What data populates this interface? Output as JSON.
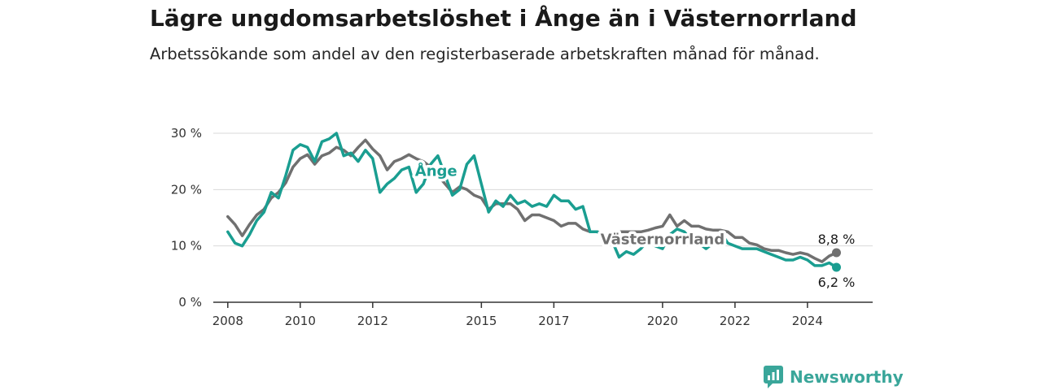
{
  "header": {
    "title": "Lägre ungdomsarbetslöshet i Ånge än i Västernorrland",
    "subtitle": "Arbetssökande som andel av den registerbaserade arbetskraften månad för månad."
  },
  "brand": {
    "name": "Newsworthy",
    "color": "#3aa69a",
    "icon": "chart-bubble-icon"
  },
  "chart_data": {
    "type": "line",
    "title": "Lägre ungdomsarbetslöshet i Ånge än i Västernorrland",
    "subtitle": "Arbetssökande som andel av den registerbaserade arbetskraften månad för månad.",
    "xlabel": "",
    "ylabel": "",
    "xlim": [
      2007.6,
      2025.8
    ],
    "ylim": [
      0,
      30
    ],
    "grid": true,
    "legend": "none",
    "x_ticks": [
      {
        "value": 2008,
        "label": "2008"
      },
      {
        "value": 2010,
        "label": "2010"
      },
      {
        "value": 2012,
        "label": "2012"
      },
      {
        "value": 2015,
        "label": "2015"
      },
      {
        "value": 2017,
        "label": "2017"
      },
      {
        "value": 2020,
        "label": "2020"
      },
      {
        "value": 2022,
        "label": "2022"
      },
      {
        "value": 2024,
        "label": "2024"
      }
    ],
    "y_ticks": [
      {
        "value": 0,
        "label": "0 %"
      },
      {
        "value": 10,
        "label": "10 %"
      },
      {
        "value": 20,
        "label": "20 %"
      },
      {
        "value": 30,
        "label": "30 %"
      }
    ],
    "series": [
      {
        "name": "Västernorrland",
        "color": "#707070",
        "end_label": "8,8 %",
        "x": [
          2008.0,
          2008.2,
          2008.4,
          2008.6,
          2008.8,
          2009.0,
          2009.2,
          2009.4,
          2009.6,
          2009.8,
          2010.0,
          2010.2,
          2010.4,
          2010.6,
          2010.8,
          2011.0,
          2011.2,
          2011.4,
          2011.6,
          2011.8,
          2012.0,
          2012.2,
          2012.4,
          2012.6,
          2012.8,
          2013.0,
          2013.2,
          2013.4,
          2013.6,
          2013.8,
          2014.0,
          2014.2,
          2014.4,
          2014.6,
          2014.8,
          2015.0,
          2015.2,
          2015.4,
          2015.6,
          2015.8,
          2016.0,
          2016.2,
          2016.4,
          2016.6,
          2016.8,
          2017.0,
          2017.2,
          2017.4,
          2017.6,
          2017.8,
          2018.0,
          2018.2,
          2018.4,
          2018.6,
          2018.8,
          2019.0,
          2019.2,
          2019.4,
          2019.6,
          2019.8,
          2020.0,
          2020.2,
          2020.4,
          2020.6,
          2020.8,
          2021.0,
          2021.2,
          2021.4,
          2021.6,
          2021.8,
          2022.0,
          2022.2,
          2022.4,
          2022.6,
          2022.8,
          2023.0,
          2023.2,
          2023.4,
          2023.6,
          2023.8,
          2024.0,
          2024.2,
          2024.4,
          2024.6,
          2024.8
        ],
        "y": [
          15.2,
          13.8,
          11.8,
          13.8,
          15.5,
          16.5,
          18.5,
          19.5,
          21.2,
          24.0,
          25.5,
          26.2,
          24.5,
          26.0,
          26.5,
          27.5,
          27.0,
          26.0,
          27.5,
          28.8,
          27.2,
          26.0,
          23.5,
          25.0,
          25.5,
          26.2,
          25.5,
          25.0,
          24.0,
          22.5,
          21.0,
          19.5,
          20.5,
          20.0,
          19.0,
          18.5,
          16.5,
          17.5,
          17.5,
          17.5,
          16.5,
          14.5,
          15.5,
          15.5,
          15.0,
          14.5,
          13.5,
          14.0,
          14.0,
          13.0,
          12.5,
          12.5,
          12.0,
          12.0,
          12.5,
          12.5,
          12.5,
          12.5,
          12.8,
          13.2,
          13.5,
          15.5,
          13.5,
          14.5,
          13.5,
          13.5,
          13.0,
          12.8,
          12.8,
          12.5,
          11.5,
          11.5,
          10.5,
          10.2,
          9.5,
          9.2,
          9.2,
          8.8,
          8.5,
          8.8,
          8.5,
          7.8,
          7.2,
          8.2,
          8.8
        ]
      },
      {
        "name": "Ånge",
        "color": "#1a9e91",
        "end_label": "6,2 %",
        "x": [
          2008.0,
          2008.2,
          2008.4,
          2008.6,
          2008.8,
          2009.0,
          2009.2,
          2009.4,
          2009.6,
          2009.8,
          2010.0,
          2010.2,
          2010.4,
          2010.6,
          2010.8,
          2011.0,
          2011.2,
          2011.4,
          2011.6,
          2011.8,
          2012.0,
          2012.2,
          2012.4,
          2012.6,
          2012.8,
          2013.0,
          2013.2,
          2013.4,
          2013.6,
          2013.8,
          2014.0,
          2014.2,
          2014.4,
          2014.6,
          2014.8,
          2015.0,
          2015.2,
          2015.4,
          2015.6,
          2015.8,
          2016.0,
          2016.2,
          2016.4,
          2016.6,
          2016.8,
          2017.0,
          2017.2,
          2017.4,
          2017.6,
          2017.8,
          2018.0,
          2018.2,
          2018.4,
          2018.6,
          2018.8,
          2019.0,
          2019.2,
          2019.4,
          2019.6,
          2019.8,
          2020.0,
          2020.2,
          2020.4,
          2020.6,
          2020.8,
          2021.0,
          2021.2,
          2021.4,
          2021.6,
          2021.8,
          2022.0,
          2022.2,
          2022.4,
          2022.6,
          2022.8,
          2023.0,
          2023.2,
          2023.4,
          2023.6,
          2023.8,
          2024.0,
          2024.2,
          2024.4,
          2024.6,
          2024.8
        ],
        "y": [
          12.5,
          10.5,
          10.0,
          12.0,
          14.5,
          16.0,
          19.5,
          18.5,
          22.5,
          27.0,
          28.0,
          27.5,
          25.0,
          28.5,
          29.0,
          30.0,
          26.0,
          26.5,
          25.0,
          27.0,
          25.5,
          19.5,
          21.0,
          22.0,
          23.5,
          24.0,
          19.5,
          21.0,
          24.5,
          26.0,
          22.5,
          19.0,
          20.0,
          24.5,
          26.0,
          21.0,
          16.0,
          18.0,
          17.0,
          19.0,
          17.5,
          18.0,
          17.0,
          17.5,
          17.0,
          19.0,
          18.0,
          18.0,
          16.5,
          17.0,
          12.5,
          12.5,
          11.5,
          11.0,
          8.0,
          9.0,
          8.5,
          9.5,
          11.0,
          10.0,
          9.5,
          12.0,
          13.0,
          12.5,
          11.0,
          10.5,
          9.5,
          10.5,
          12.5,
          10.5,
          10.0,
          9.5,
          9.5,
          9.5,
          9.0,
          8.5,
          8.0,
          7.5,
          7.5,
          8.0,
          7.5,
          6.5,
          6.5,
          7.0,
          6.2
        ]
      }
    ],
    "labels": [
      {
        "series": "Ånge",
        "text": "Ånge",
        "x": 2013.75,
        "y": 23.3
      },
      {
        "series": "Västernorrland",
        "text": "Västernorrland",
        "x": 2020.0,
        "y": 11.2
      }
    ]
  }
}
